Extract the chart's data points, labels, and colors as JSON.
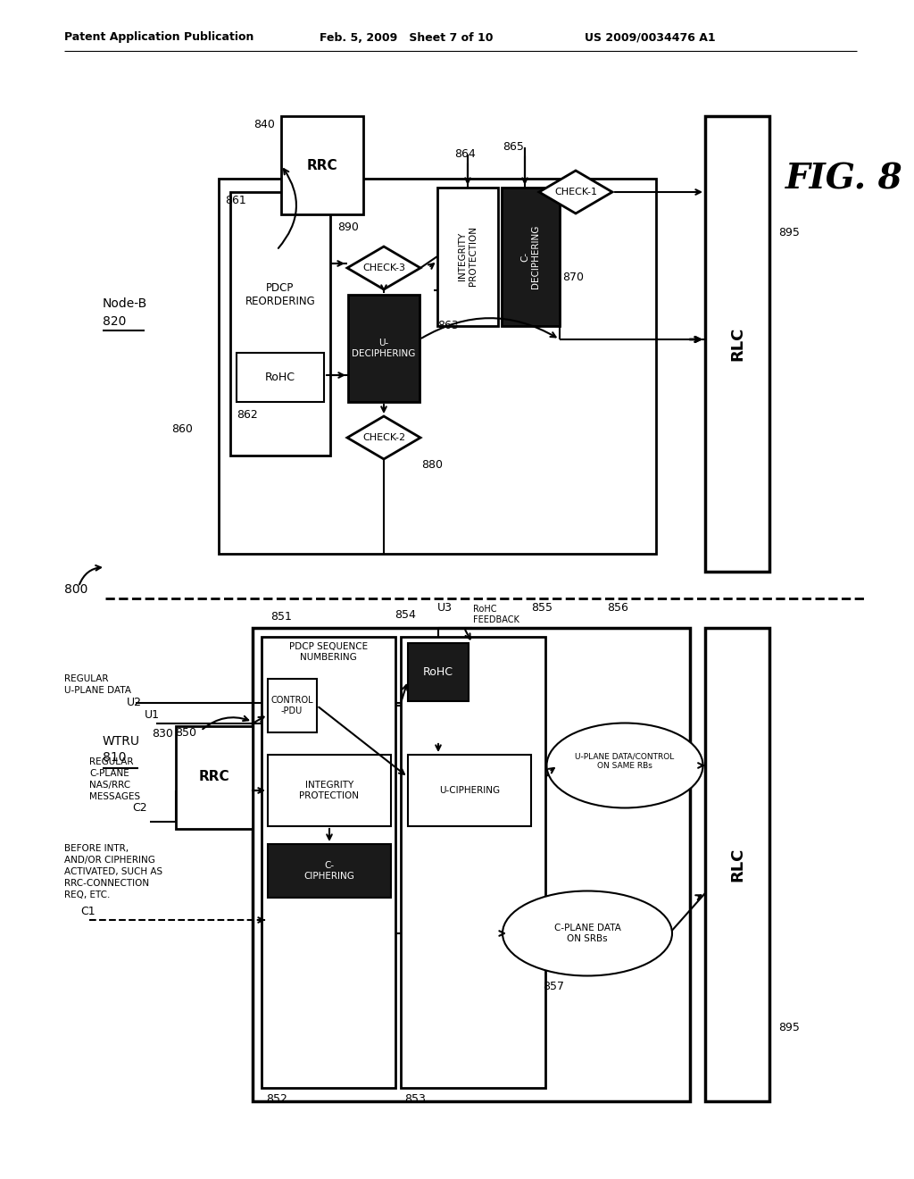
{
  "bg_color": "#ffffff",
  "header_left": "Patent Application Publication",
  "header_mid": "Feb. 5, 2009   Sheet 7 of 10",
  "header_right": "US 2009/0034476 A1"
}
